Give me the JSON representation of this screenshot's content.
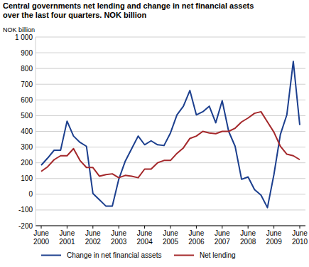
{
  "chart_data": {
    "type": "line",
    "title": "Central governments net lending and change in net financial assets\nover the last four quarters. NOK billion",
    "y_label": "NOK billion",
    "categories": [
      "June 2000",
      null,
      null,
      null,
      "June 2001",
      null,
      null,
      null,
      "June 2002",
      null,
      null,
      null,
      "June 2003",
      null,
      null,
      null,
      "June 2004",
      null,
      null,
      null,
      "June 2005",
      null,
      null,
      null,
      "June 2006",
      null,
      null,
      null,
      "June 2007",
      null,
      null,
      null,
      "June 2008",
      null,
      null,
      null,
      "June 2009",
      null,
      null,
      null,
      "June 2010"
    ],
    "series": [
      {
        "name": "Change in net financial assets",
        "color": "#1c3f8e",
        "values": [
          185,
          230,
          280,
          280,
          465,
          370,
          330,
          305,
          5,
          -35,
          -75,
          -75,
          95,
          210,
          290,
          370,
          315,
          340,
          315,
          310,
          390,
          505,
          560,
          660,
          505,
          525,
          560,
          455,
          595,
          400,
          305,
          95,
          110,
          30,
          -5,
          -85,
          125,
          380,
          505,
          845,
          440
        ]
      },
      {
        "name": "Net lending",
        "color": "#a4282b",
        "values": [
          145,
          175,
          220,
          245,
          245,
          290,
          215,
          170,
          170,
          115,
          125,
          130,
          105,
          120,
          115,
          105,
          160,
          160,
          200,
          215,
          215,
          260,
          295,
          355,
          370,
          400,
          390,
          385,
          400,
          400,
          420,
          460,
          485,
          515,
          525,
          460,
          395,
          305,
          255,
          245,
          220
        ]
      }
    ],
    "ylim": [
      -200,
      1000
    ],
    "yticks": [
      -200,
      -100,
      0,
      100,
      200,
      300,
      400,
      500,
      600,
      700,
      800,
      900,
      {
        "value": 1000,
        "label": "1 000"
      }
    ],
    "grid": true,
    "legend": "bottom"
  }
}
